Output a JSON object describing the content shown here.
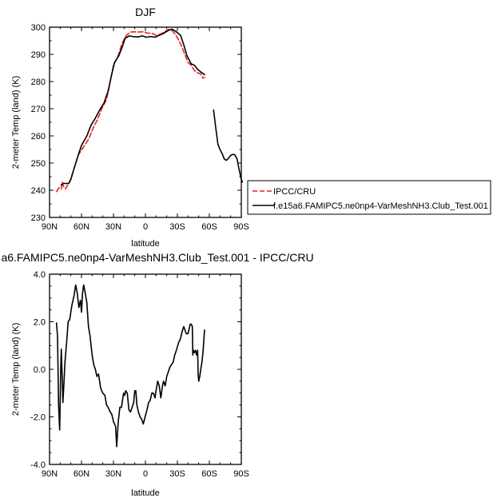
{
  "chart_data": [
    {
      "type": "line",
      "title": "DJF",
      "xlabel": "latitude",
      "ylabel": "2-meter Temp (land) (K)",
      "xlim": [
        90,
        -90
      ],
      "ylim": [
        230,
        300
      ],
      "x_ticks": [
        90,
        60,
        30,
        0,
        -30,
        -60,
        -90
      ],
      "x_tick_labels": [
        "90N",
        "60N",
        "30N",
        "0",
        "30S",
        "60S",
        "90S"
      ],
      "y_ticks": [
        230,
        240,
        250,
        260,
        270,
        280,
        290,
        300
      ],
      "y_tick_labels": [
        "230",
        "240",
        "250",
        "260",
        "270",
        "280",
        "290",
        "300"
      ],
      "legend_position": "right",
      "series": [
        {
          "name": "IPCC/CRU",
          "color": "#e8231f",
          "dash": "dashed",
          "segments": [
            [
              [
                83.5,
                239.5
              ],
              [
                81,
                241
              ],
              [
                79,
                240.5
              ],
              [
                78,
                243
              ],
              [
                77,
                241.5
              ],
              [
                75,
                240.5
              ],
              [
                73,
                242
              ],
              [
                71,
                243
              ],
              [
                67,
                248
              ],
              [
                63,
                253
              ],
              [
                58,
                256
              ],
              [
                53,
                259
              ],
              [
                49,
                263
              ],
              [
                45,
                266
              ],
              [
                41,
                270
              ],
              [
                37,
                273
              ],
              [
                35,
                276
              ],
              [
                32,
                282
              ],
              [
                30,
                286
              ],
              [
                26,
                289
              ],
              [
                22,
                294
              ],
              [
                18,
                297
              ],
              [
                14,
                298.2
              ],
              [
                10,
                298.3
              ],
              [
                6,
                298.2
              ],
              [
                2,
                298.3
              ],
              [
                -2,
                297.8
              ],
              [
                -6,
                297.8
              ],
              [
                -10,
                297
              ],
              [
                -14,
                297.4
              ],
              [
                -18,
                298.3
              ],
              [
                -22,
                299.2
              ],
              [
                -25,
                298.8
              ],
              [
                -28,
                297.4
              ],
              [
                -31,
                295.5
              ],
              [
                -34,
                293
              ],
              [
                -37,
                290
              ],
              [
                -40,
                287
              ],
              [
                -43,
                286
              ],
              [
                -46,
                284
              ],
              [
                -49,
                283.2
              ],
              [
                -52,
                282.8
              ],
              [
                -54,
                281.3
              ],
              [
                -55.5,
                281.5
              ]
            ]
          ]
        },
        {
          "name": "f.e15a6.FAMIPC5.ne0np4-VarMeshNH3.Club_Test.001",
          "color": "#000000",
          "dash": "solid",
          "segments": [
            [
              [
                79,
                242
              ],
              [
                77,
                242.5
              ],
              [
                75,
                242.5
              ],
              [
                72,
                242.5
              ],
              [
                70,
                244
              ],
              [
                67,
                248
              ],
              [
                63,
                253
              ],
              [
                60,
                256.5
              ],
              [
                55,
                260
              ],
              [
                51,
                264
              ],
              [
                47,
                266.5
              ],
              [
                43,
                269.5
              ],
              [
                39,
                272
              ],
              [
                35,
                276.5
              ],
              [
                32,
                282
              ],
              [
                29,
                287
              ],
              [
                25,
                289.5
              ],
              [
                22,
                292.5
              ],
              [
                19,
                296
              ],
              [
                15,
                296.8
              ],
              [
                11,
                296.5
              ],
              [
                7,
                296.4
              ],
              [
                3,
                296.8
              ],
              [
                -1,
                296.3
              ],
              [
                -5,
                296.6
              ],
              [
                -9,
                296.3
              ],
              [
                -13,
                297
              ],
              [
                -17,
                297.7
              ],
              [
                -21,
                298.7
              ],
              [
                -25,
                299.3
              ],
              [
                -29,
                298.3
              ],
              [
                -33,
                297
              ],
              [
                -36,
                293.5
              ],
              [
                -39,
                289.5
              ],
              [
                -43,
                286.5
              ],
              [
                -46,
                286
              ],
              [
                -49,
                284.5
              ],
              [
                -52,
                283.5
              ],
              [
                -54,
                283
              ],
              [
                -55.5,
                282.5
              ]
            ],
            [
              [
                -64,
                269.5
              ],
              [
                -66,
                263
              ],
              [
                -68,
                257
              ],
              [
                -70,
                255
              ],
              [
                -72,
                253.5
              ],
              [
                -74,
                251.5
              ],
              [
                -76,
                251
              ],
              [
                -78,
                251.8
              ],
              [
                -80,
                252.8
              ],
              [
                -82,
                253.2
              ],
              [
                -84,
                253
              ],
              [
                -86,
                251.5
              ],
              [
                -88,
                247.5
              ],
              [
                -90,
                244
              ],
              [
                -91,
                243
              ]
            ]
          ]
        }
      ]
    },
    {
      "type": "line",
      "title": "a6.FAMIPC5.ne0np4-VarMeshNH3.Club_Test.001 - IPCC/CRU",
      "xlabel": "latitude",
      "ylabel": "2-meter Temp (land) (K)",
      "xlim": [
        90,
        -90
      ],
      "ylim": [
        -4,
        4
      ],
      "x_ticks": [
        90,
        60,
        30,
        0,
        -30,
        -60,
        -90
      ],
      "x_tick_labels": [
        "90N",
        "60N",
        "30N",
        "0",
        "30S",
        "60S",
        "90S"
      ],
      "y_ticks": [
        -4,
        -2,
        0,
        2,
        4
      ],
      "y_tick_labels": [
        "-4.0",
        "-2.0",
        "0.0",
        "2.0",
        "4.0"
      ],
      "series": [
        {
          "color": "#000000",
          "dash": "solid",
          "segments": [
            [
              [
                83.5,
                1.95
              ],
              [
                82.5,
                1.4
              ],
              [
                81.5,
                -1.5
              ],
              [
                80.5,
                -2.55
              ],
              [
                79.5,
                0.0
              ],
              [
                79,
                0.85
              ],
              [
                78,
                -0.5
              ],
              [
                77.5,
                -1.4
              ],
              [
                76.5,
                -0.6
              ],
              [
                75.5,
                0.3
              ],
              [
                74,
                1.1
              ],
              [
                72.5,
                2.0
              ],
              [
                71,
                2.1
              ],
              [
                69,
                2.7
              ],
              [
                67,
                3.1
              ],
              [
                65.5,
                3.55
              ],
              [
                64,
                3.2
              ],
              [
                62.5,
                2.6
              ],
              [
                61,
                2.9
              ],
              [
                60,
                2.4
              ],
              [
                59,
                3.2
              ],
              [
                58,
                3.55
              ],
              [
                56.5,
                3.2
              ],
              [
                55,
                2.8
              ],
              [
                53.5,
                1.8
              ],
              [
                52,
                1.4
              ],
              [
                50,
                0.6
              ],
              [
                48.5,
                0.2
              ],
              [
                47,
                0.0
              ],
              [
                45.5,
                -0.3
              ],
              [
                44,
                -0.2
              ],
              [
                42,
                -0.8
              ],
              [
                40,
                -1.0
              ],
              [
                38,
                -1.1
              ],
              [
                36.5,
                -1.5
              ],
              [
                35,
                -1.6
              ],
              [
                33,
                -1.8
              ],
              [
                31.5,
                -1.9
              ],
              [
                30,
                -2.2
              ],
              [
                28,
                -2.4
              ],
              [
                27,
                -3.25
              ],
              [
                25.5,
                -2.2
              ],
              [
                24,
                -1.6
              ],
              [
                22.5,
                -1.6
              ],
              [
                21.5,
                -1.3
              ],
              [
                20.5,
                -1.0
              ],
              [
                19.5,
                -1.1
              ],
              [
                18.5,
                -0.9
              ],
              [
                17,
                -1.0
              ],
              [
                15.5,
                -1.7
              ],
              [
                14,
                -1.8
              ],
              [
                12.5,
                -1.6
              ],
              [
                11,
                -1.4
              ],
              [
                10,
                -0.9
              ],
              [
                9,
                -0.9
              ],
              [
                8,
                -1.5
              ],
              [
                6.5,
                -1.8
              ],
              [
                5,
                -2.0
              ],
              [
                3.5,
                -2.1
              ],
              [
                2,
                -2.3
              ],
              [
                0,
                -1.95
              ],
              [
                -1.5,
                -1.7
              ],
              [
                -3,
                -1.4
              ],
              [
                -4.5,
                -1.3
              ],
              [
                -6,
                -1.0
              ],
              [
                -7.5,
                -1.0
              ],
              [
                -9,
                -1.2
              ],
              [
                -10,
                -0.9
              ],
              [
                -11.5,
                -0.5
              ],
              [
                -13,
                -0.7
              ],
              [
                -14.5,
                -1.2
              ],
              [
                -16,
                -0.7
              ],
              [
                -17,
                -0.5
              ],
              [
                -18.5,
                -0.7
              ],
              [
                -20,
                -0.3
              ],
              [
                -21.5,
                -0.1
              ],
              [
                -23,
                0.1
              ],
              [
                -24.5,
                0.2
              ],
              [
                -26,
                0.3
              ],
              [
                -27.5,
                0.6
              ],
              [
                -29,
                0.8
              ],
              [
                -31,
                1.1
              ],
              [
                -33,
                1.3
              ],
              [
                -34.5,
                1.6
              ],
              [
                -36,
                1.8
              ],
              [
                -37.5,
                1.6
              ],
              [
                -38.5,
                1.5
              ],
              [
                -40,
                1.5
              ],
              [
                -41,
                1.7
              ],
              [
                -42,
                1.9
              ],
              [
                -43,
                1.9
              ],
              [
                -44,
                1.8
              ],
              [
                -44.5,
                0.6
              ],
              [
                -45,
                0.8
              ],
              [
                -46,
                0.7
              ],
              [
                -47,
                0.8
              ],
              [
                -48,
                0.6
              ],
              [
                -49,
                0.8
              ],
              [
                -49.5,
                -0.2
              ],
              [
                -50,
                -0.5
              ],
              [
                -51,
                -0.3
              ],
              [
                -52,
                0.0
              ],
              [
                -53,
                0.3
              ],
              [
                -54,
                0.7
              ],
              [
                -55.5,
                1.65
              ]
            ]
          ]
        }
      ]
    }
  ]
}
